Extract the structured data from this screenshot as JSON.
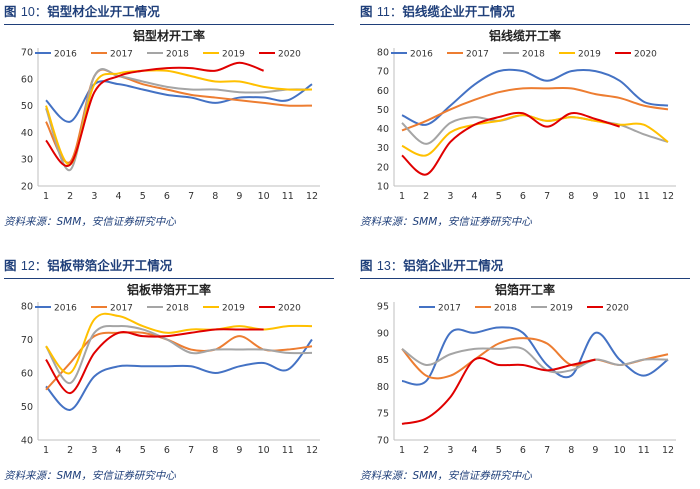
{
  "panels": [
    {
      "fig_label": "图",
      "fig_num": "10",
      "title": "铝型材企业开工情况",
      "source": "资料来源：SMM，安信证券研究中心",
      "chart_data": {
        "type": "line",
        "title": "铝型材开工率",
        "categories": [
          "1",
          "2",
          "3",
          "4",
          "5",
          "6",
          "7",
          "8",
          "9",
          "10",
          "11",
          "12"
        ],
        "y_ticks": [
          "20",
          "30",
          "40",
          "50",
          "60",
          "70"
        ],
        "ylim": [
          20,
          70
        ],
        "legend_position": "top-right",
        "series": [
          {
            "name": "2016",
            "color": "#4472c4",
            "values": [
              52,
              44,
              58,
              58,
              56,
              54,
              53,
              51,
              53,
              53,
              52,
              58
            ]
          },
          {
            "name": "2017",
            "color": "#ed7d31",
            "values": [
              44,
              29,
              61,
              61,
              58,
              56,
              54,
              53,
              52,
              51,
              50,
              50
            ]
          },
          {
            "name": "2018",
            "color": "#a5a5a5",
            "values": [
              49,
              26,
              61,
              61,
              59,
              57,
              56,
              56,
              55,
              55,
              56,
              56
            ]
          },
          {
            "name": "2019",
            "color": "#ffc000",
            "values": [
              50,
              28,
              58,
              62,
              63,
              63,
              61,
              59,
              59,
              57,
              56,
              56
            ]
          },
          {
            "name": "2020",
            "color": "#e00000",
            "values": [
              37,
              28,
              55,
              61,
              63,
              64,
              64,
              63,
              66,
              63,
              null,
              null
            ]
          }
        ]
      }
    },
    {
      "fig_label": "图",
      "fig_num": "11",
      "title": "铝线缆企业开工情况",
      "source": "资料来源：SMM，安信证券研究中心",
      "chart_data": {
        "type": "line",
        "title": "铝线缆开工率",
        "categories": [
          "1",
          "2",
          "3",
          "4",
          "5",
          "6",
          "7",
          "8",
          "9",
          "10",
          "11",
          "12"
        ],
        "y_ticks": [
          "10",
          "20",
          "30",
          "40",
          "50",
          "60",
          "70",
          "80"
        ],
        "ylim": [
          10,
          80
        ],
        "legend_position": "top",
        "series": [
          {
            "name": "2016",
            "color": "#4472c4",
            "values": [
              47,
              42,
              52,
              63,
              70,
              70,
              65,
              70,
              70,
              65,
              54,
              52
            ]
          },
          {
            "name": "2017",
            "color": "#ed7d31",
            "values": [
              39,
              44,
              50,
              55,
              59,
              61,
              61,
              61,
              58,
              56,
              52,
              50
            ]
          },
          {
            "name": "2018",
            "color": "#a5a5a5",
            "values": [
              43,
              32,
              43,
              46,
              44,
              47,
              44,
              46,
              44,
              42,
              37,
              33
            ]
          },
          {
            "name": "2019",
            "color": "#ffc000",
            "values": [
              31,
              26,
              38,
              42,
              44,
              47,
              44,
              46,
              44,
              42,
              42,
              33
            ]
          },
          {
            "name": "2020",
            "color": "#e00000",
            "values": [
              26,
              16,
              33,
              42,
              46,
              48,
              41,
              48,
              45,
              41,
              null,
              null
            ]
          }
        ]
      }
    },
    {
      "fig_label": "图",
      "fig_num": "12",
      "title": "铝板带箔企业开工情况",
      "source": "资料来源：SMM，安信证券研究中心",
      "chart_data": {
        "type": "line",
        "title": "铝板带箔开工率",
        "categories": [
          "1",
          "2",
          "3",
          "4",
          "5",
          "6",
          "7",
          "8",
          "9",
          "10",
          "11",
          "12"
        ],
        "y_ticks": [
          "40",
          "50",
          "60",
          "70",
          "80"
        ],
        "ylim": [
          40,
          80
        ],
        "legend_position": "top",
        "series": [
          {
            "name": "2016",
            "color": "#4472c4",
            "values": [
              56,
              49,
              59,
              62,
              62,
              62,
              62,
              60,
              62,
              63,
              61,
              70
            ]
          },
          {
            "name": "2017",
            "color": "#ed7d31",
            "values": [
              55,
              63,
              71,
              72,
              72,
              70,
              67,
              67,
              71,
              67,
              67,
              68
            ]
          },
          {
            "name": "2018",
            "color": "#a5a5a5",
            "values": [
              68,
              57,
              72,
              74,
              73,
              70,
              66,
              67,
              67,
              67,
              66,
              66
            ]
          },
          {
            "name": "2019",
            "color": "#ffc000",
            "values": [
              68,
              60,
              76,
              77,
              74,
              72,
              73,
              73,
              74,
              73,
              74,
              74
            ]
          },
          {
            "name": "2020",
            "color": "#e00000",
            "values": [
              64,
              54,
              66,
              72,
              71,
              71,
              72,
              73,
              73,
              73,
              null,
              null
            ]
          }
        ]
      }
    },
    {
      "fig_label": "图",
      "fig_num": "13",
      "title": "铝箔企业开工情况",
      "source": "资料来源：SMM，安信证券研究中心",
      "chart_data": {
        "type": "line",
        "title": "铝箔开工率",
        "categories": [
          "1",
          "2",
          "3",
          "4",
          "5",
          "6",
          "7",
          "8",
          "9",
          "10",
          "11",
          "12"
        ],
        "y_ticks": [
          "70",
          "75",
          "80",
          "85",
          "90",
          "95"
        ],
        "ylim": [
          70,
          95
        ],
        "legend_position": "top",
        "series": [
          {
            "name": "2017",
            "color": "#4472c4",
            "values": [
              81,
              81,
              90,
              90,
              91,
              90,
              84,
              82,
              90,
              85,
              82,
              85
            ]
          },
          {
            "name": "2018",
            "color": "#ed7d31",
            "values": [
              87,
              82,
              82,
              85,
              88,
              89,
              88,
              84,
              85,
              84,
              85,
              86
            ]
          },
          {
            "name": "2019",
            "color": "#a5a5a5",
            "values": [
              87,
              84,
              86,
              87,
              87,
              87,
              83,
              83,
              85,
              84,
              85,
              85
            ]
          },
          {
            "name": "2020",
            "color": "#e00000",
            "values": [
              73,
              74,
              78,
              85,
              84,
              84,
              83,
              84,
              85,
              null,
              null,
              null
            ]
          }
        ]
      }
    }
  ]
}
